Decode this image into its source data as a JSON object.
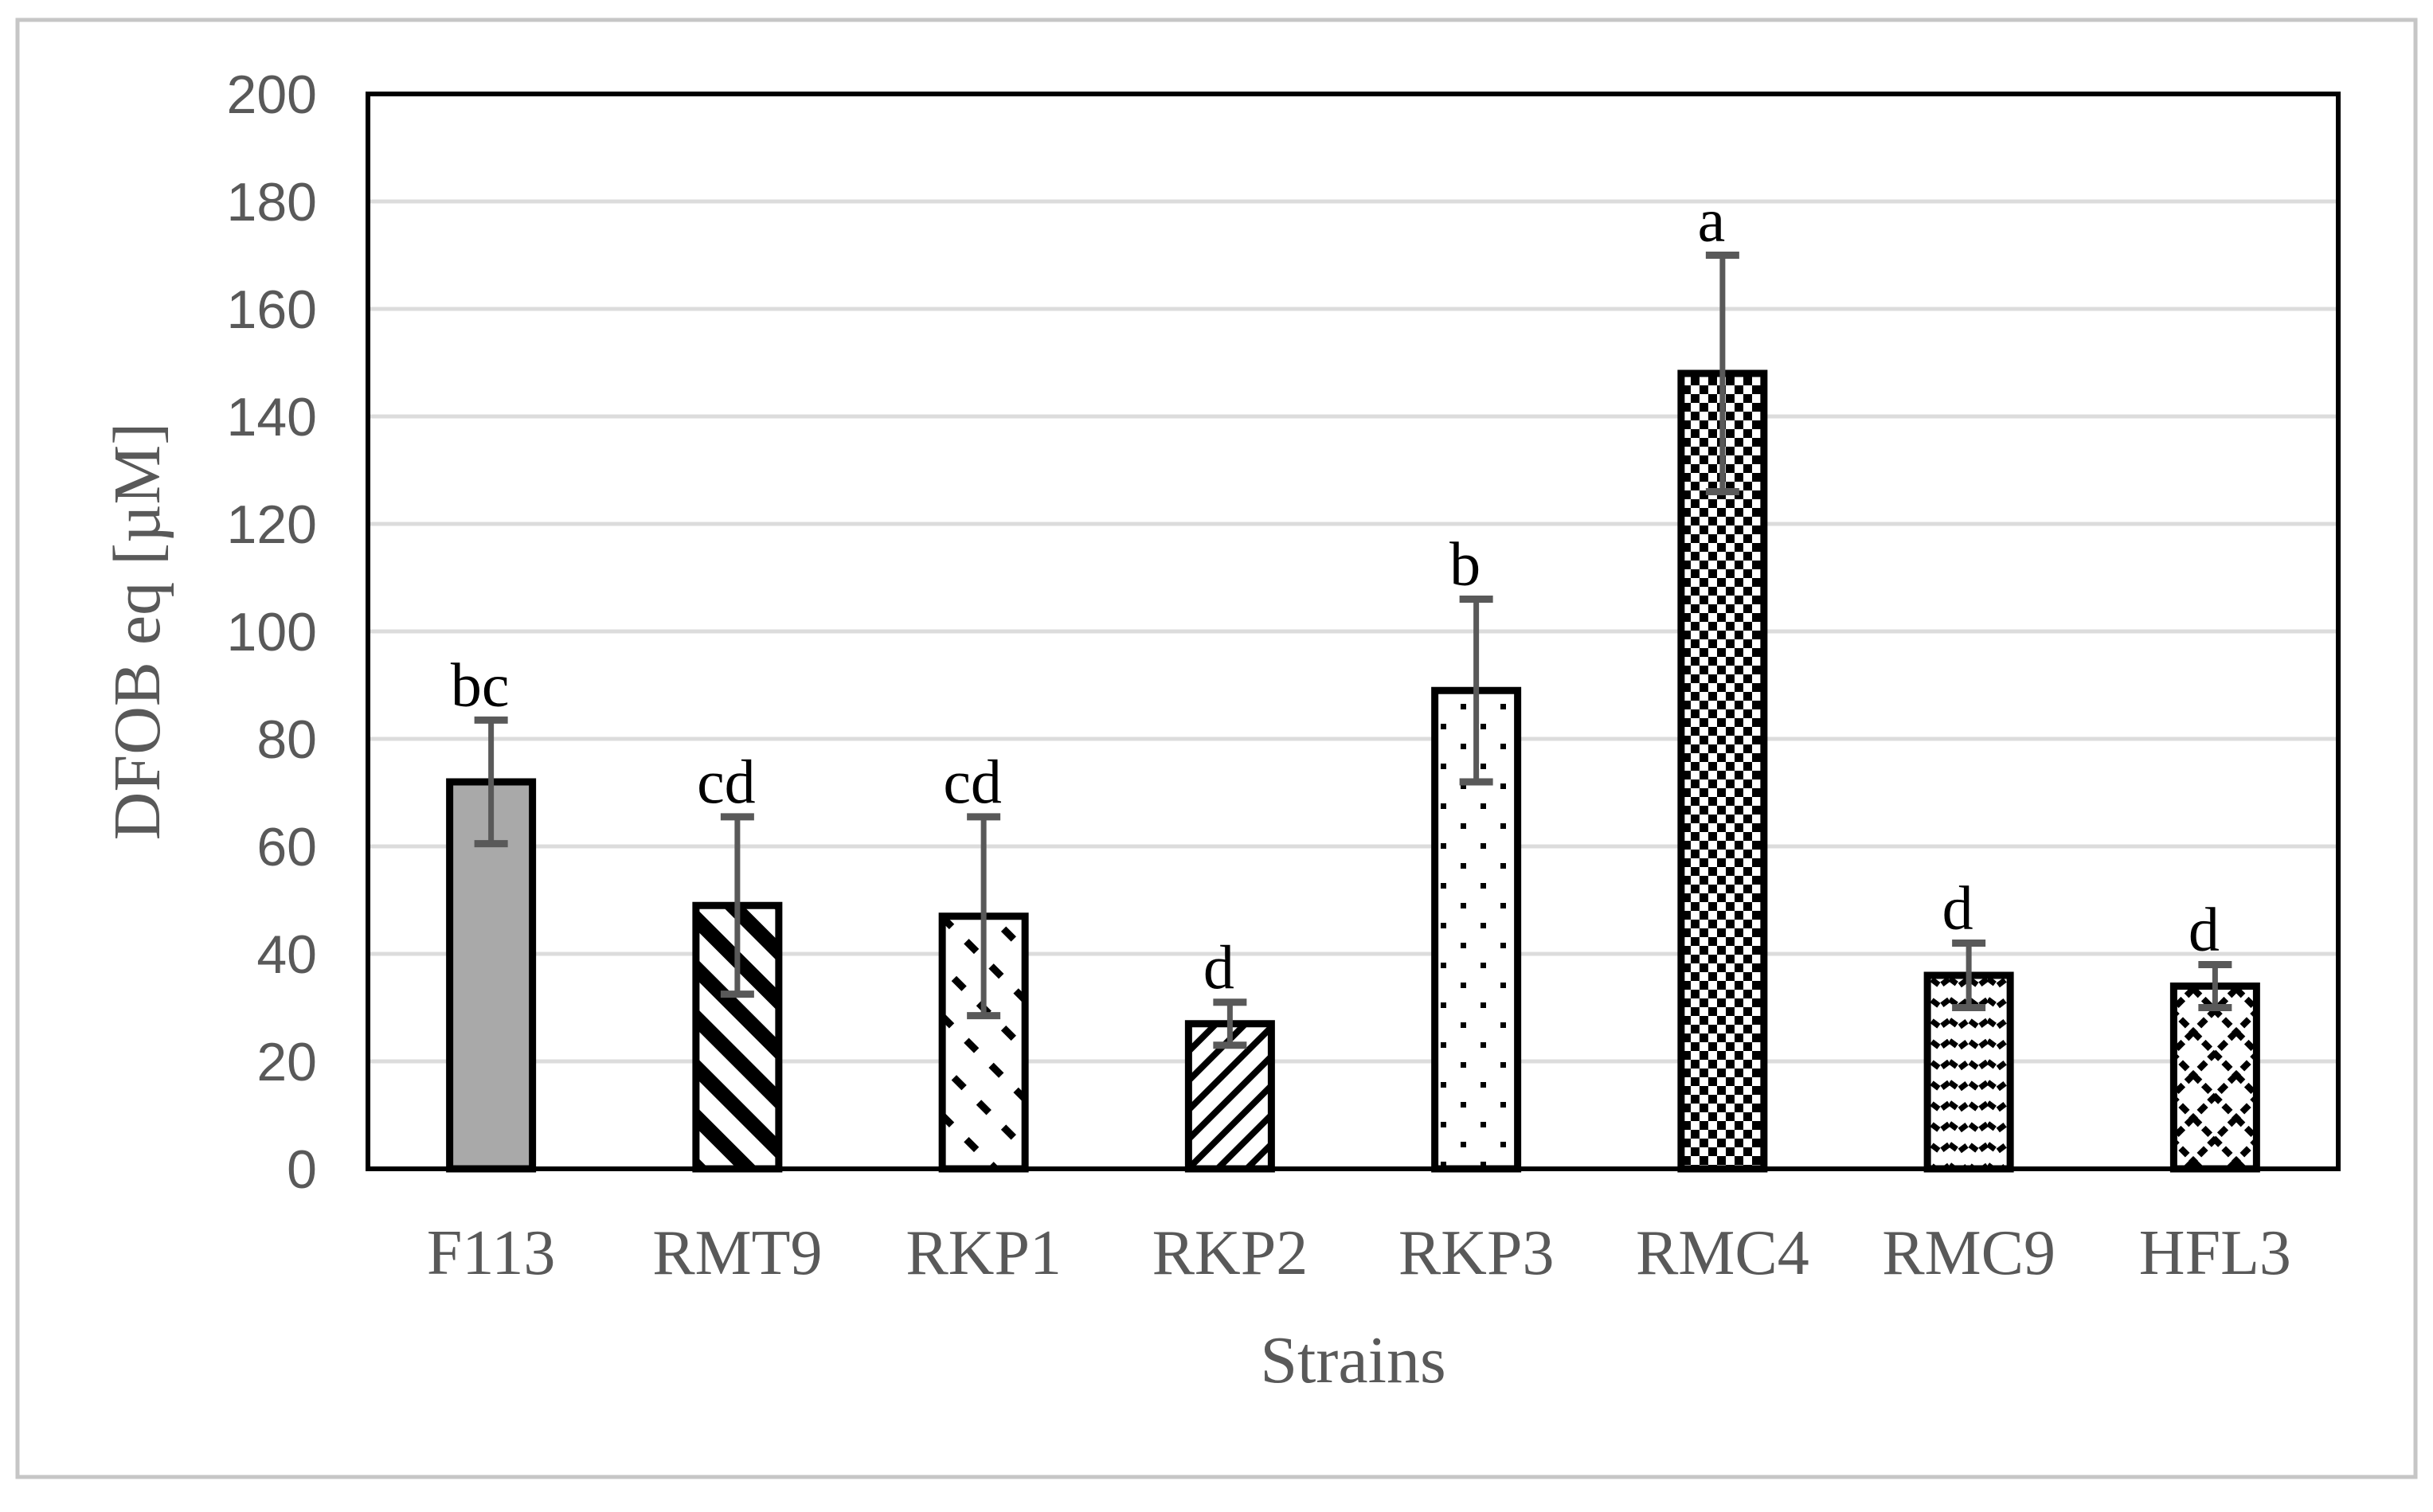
{
  "chart_data": {
    "type": "bar",
    "title": "",
    "xlabel": "Strains",
    "ylabel": "DFOB eq [µM]",
    "ylim": [
      0,
      200
    ],
    "ytick_step": 20,
    "grid": "horizontal-light",
    "legend": "none",
    "categories": [
      "F113",
      "RMT9",
      "RKP1",
      "RKP2",
      "RKP3",
      "RMC4",
      "RMC9",
      "HFL3"
    ],
    "values": [
      72,
      49,
      47,
      27,
      89,
      148,
      36,
      34
    ],
    "error_bars": [
      11.5,
      16.5,
      18.5,
      4,
      17,
      22,
      6,
      4
    ],
    "significance_letters": [
      "bc",
      "cd",
      "cd",
      "d",
      "b",
      "a",
      "d",
      "d"
    ],
    "bar_patterns": [
      "solid-gray",
      "diagonal-down-bold",
      "diagonal-down-dashed",
      "diagonal-up-thin",
      "dots-sparse",
      "checkerboard",
      "horizontal-waves",
      "diamond-crosshatch"
    ],
    "style": {
      "text_color": "#595959",
      "letter_color": "#000000",
      "grid_color": "#dcdcdc",
      "axis_color": "#000000",
      "error_bar_color": "#595959",
      "solid_bar_fill": "#a9a9a9",
      "pattern_foreground": "#000000",
      "pattern_background": "#ffffff",
      "figure_border_color": "#c6c6c6",
      "background": "#ffffff"
    }
  }
}
